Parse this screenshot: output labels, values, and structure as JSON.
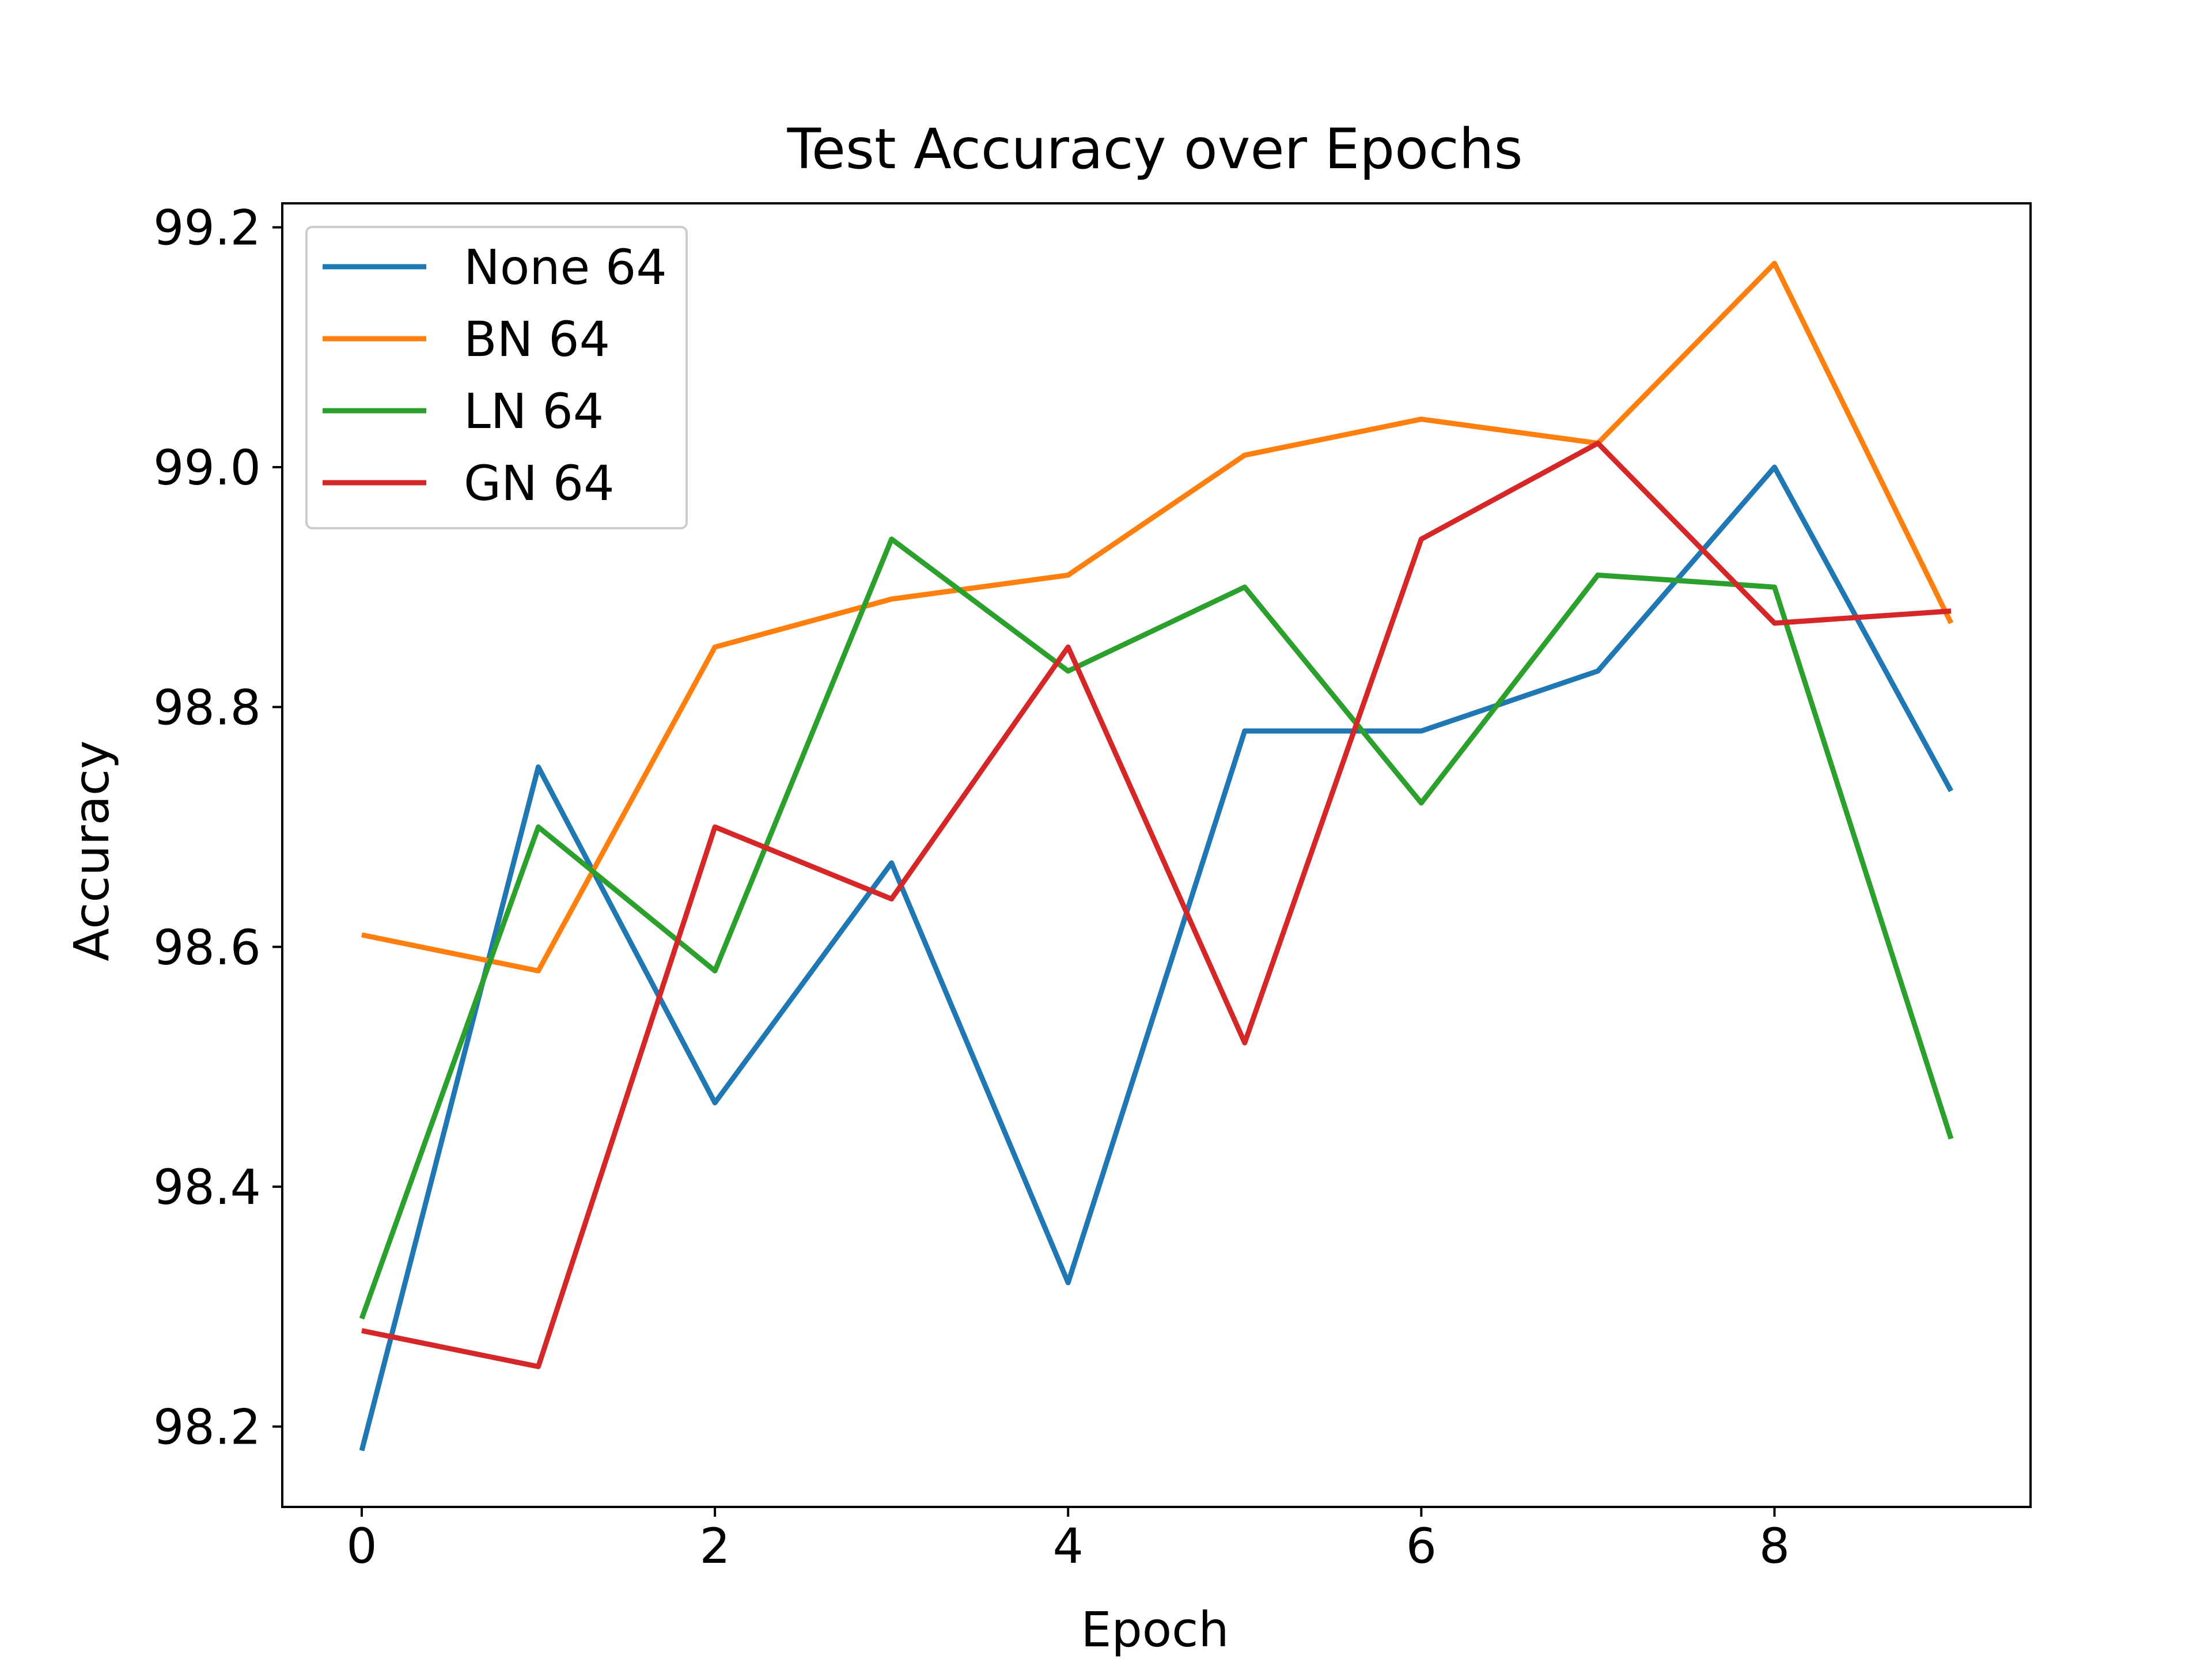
{
  "chart_data": {
    "type": "line",
    "title": "Test Accuracy over Epochs",
    "xlabel": "Epoch",
    "ylabel": "Accuracy",
    "x": [
      0,
      1,
      2,
      3,
      4,
      5,
      6,
      7,
      8,
      9
    ],
    "xlim": [
      -0.45,
      9.45
    ],
    "ylim": [
      98.133,
      99.22
    ],
    "xticks": [
      "0",
      "2",
      "4",
      "6",
      "8"
    ],
    "yticks": [
      "98.2",
      "98.4",
      "98.6",
      "98.8",
      "99.0",
      "99.2"
    ],
    "grid": false,
    "legend_position": "upper-left",
    "series": [
      {
        "name": "None 64",
        "color": "#1f77b4",
        "values": [
          98.18,
          98.75,
          98.47,
          98.67,
          98.32,
          98.78,
          98.78,
          98.83,
          99.0,
          98.73
        ]
      },
      {
        "name": "BN 64",
        "color": "#ff7f0e",
        "values": [
          98.61,
          98.58,
          98.85,
          98.89,
          98.91,
          99.01,
          99.04,
          99.02,
          99.17,
          98.87
        ]
      },
      {
        "name": "LN 64",
        "color": "#2ca02c",
        "values": [
          98.29,
          98.7,
          98.58,
          98.94,
          98.83,
          98.9,
          98.72,
          98.91,
          98.9,
          98.44
        ]
      },
      {
        "name": "GN 64",
        "color": "#d62728",
        "values": [
          98.28,
          98.25,
          98.7,
          98.64,
          98.85,
          98.52,
          98.94,
          99.02,
          98.87,
          98.88
        ]
      }
    ]
  }
}
